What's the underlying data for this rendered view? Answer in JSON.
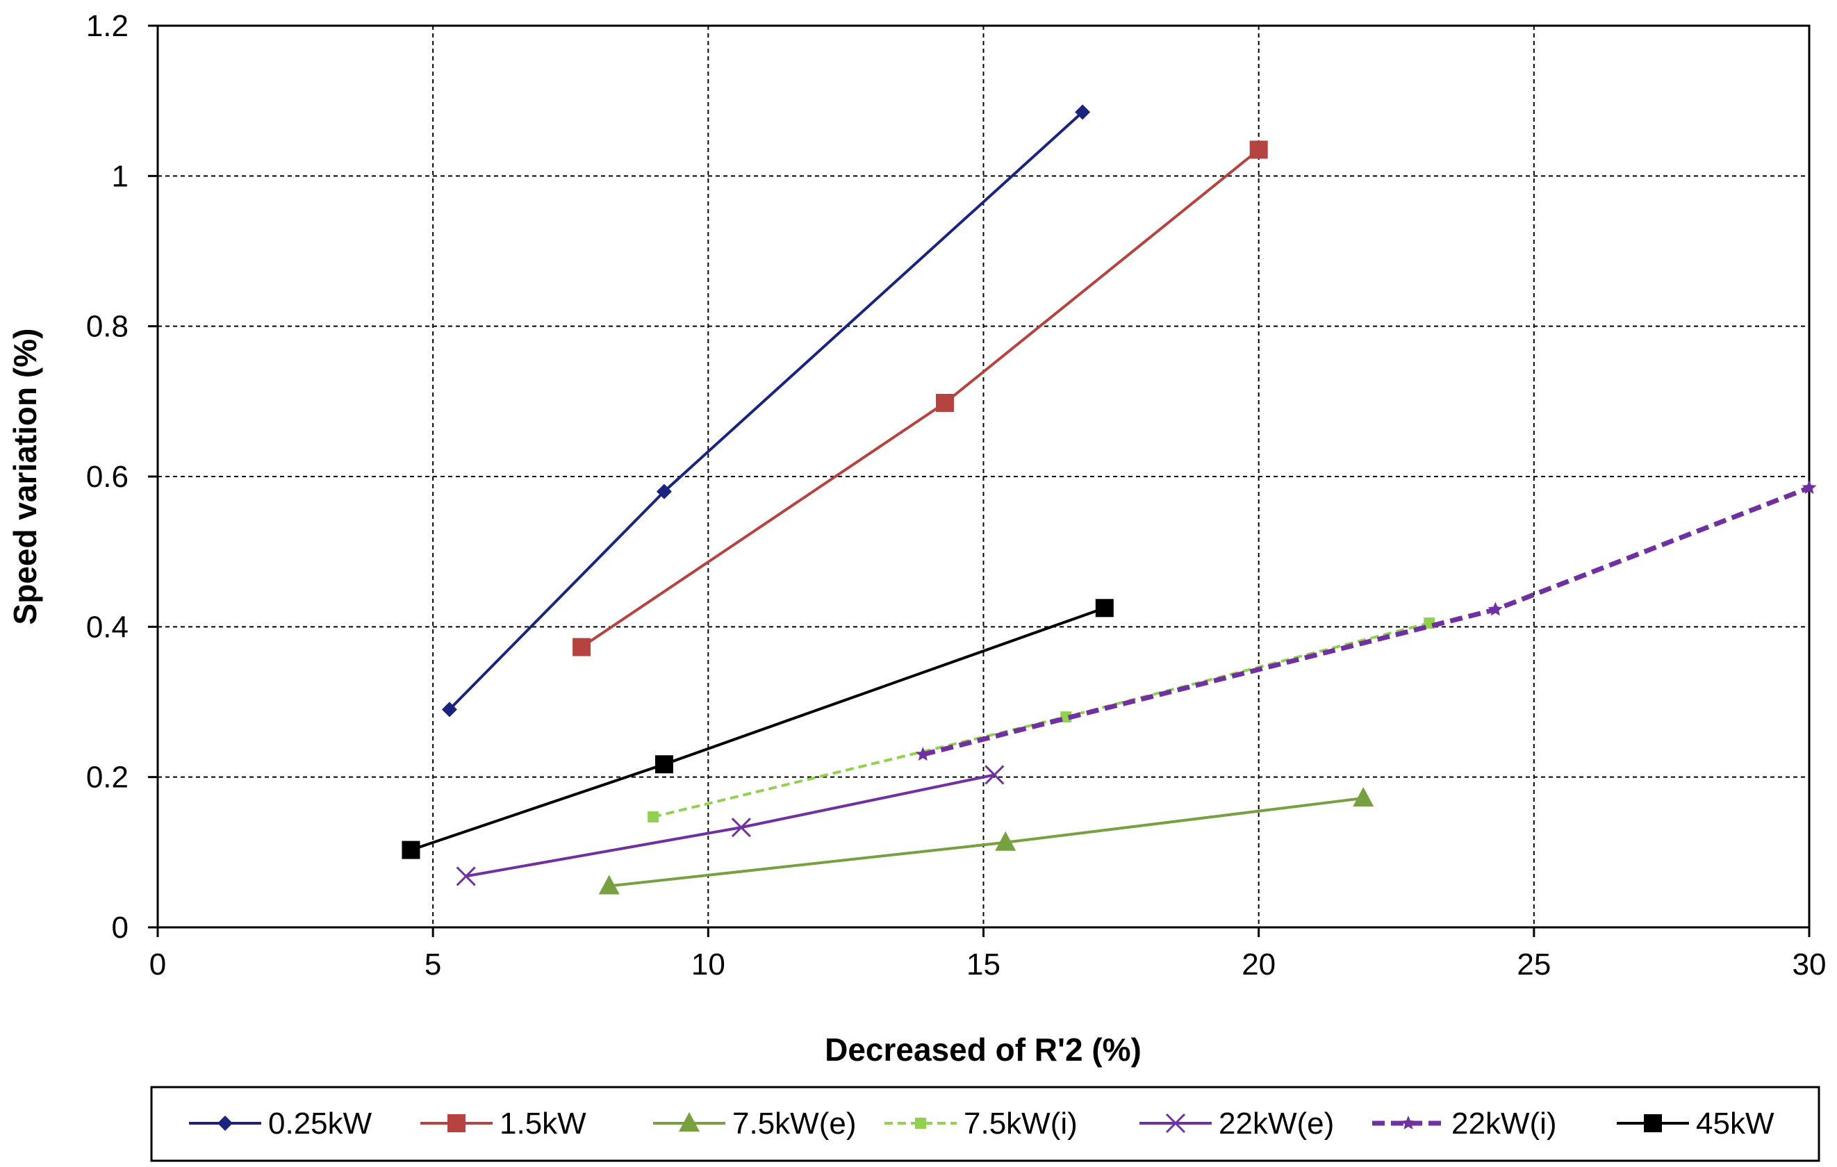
{
  "chart_data": {
    "type": "line",
    "title": "",
    "xlabel": "Decreased of R'2 (%)",
    "ylabel": "Speed variation (%)",
    "xlim": [
      0,
      30
    ],
    "ylim": [
      0,
      1.2
    ],
    "x_ticks": [
      "0",
      "5",
      "10",
      "15",
      "20",
      "25",
      "30"
    ],
    "y_ticks": [
      "0",
      "0.2",
      "0.4",
      "0.6",
      "0.8",
      "1",
      "1.2"
    ],
    "grid": true,
    "legend_position": "bottom",
    "series": [
      {
        "name": "0.25kW",
        "color": "#1a237e",
        "marker": "diamond",
        "dashed": false,
        "x": [
          5.3,
          9.2,
          16.8
        ],
        "y": [
          0.29,
          0.58,
          1.085
        ]
      },
      {
        "name": "1.5kW",
        "color": "#b5433f",
        "marker": "square",
        "dashed": false,
        "x": [
          7.7,
          14.3,
          20.0
        ],
        "y": [
          0.373,
          0.698,
          1.035
        ]
      },
      {
        "name": "7.5kW(e)",
        "color": "#77a040",
        "marker": "triangle",
        "dashed": false,
        "x": [
          8.2,
          15.4,
          21.9
        ],
        "y": [
          0.055,
          0.113,
          0.172
        ]
      },
      {
        "name": "7.5kW(i)",
        "color": "#92d050",
        "marker": "small-square",
        "dashed": true,
        "x": [
          9.0,
          16.5,
          23.1
        ],
        "y": [
          0.147,
          0.28,
          0.405
        ]
      },
      {
        "name": "22kW(e)",
        "color": "#7030a0",
        "marker": "x",
        "dashed": false,
        "x": [
          5.6,
          10.6,
          15.2
        ],
        "y": [
          0.068,
          0.133,
          0.203
        ]
      },
      {
        "name": "22kW(i)",
        "color": "#7030a0",
        "marker": "star",
        "dashed": true,
        "x": [
          13.9,
          24.3,
          30.0
        ],
        "y": [
          0.23,
          0.423,
          0.585
        ]
      },
      {
        "name": "45kW",
        "color": "#000000",
        "marker": "square",
        "dashed": false,
        "x": [
          4.6,
          9.2,
          17.2
        ],
        "y": [
          0.103,
          0.217,
          0.425
        ]
      }
    ]
  }
}
